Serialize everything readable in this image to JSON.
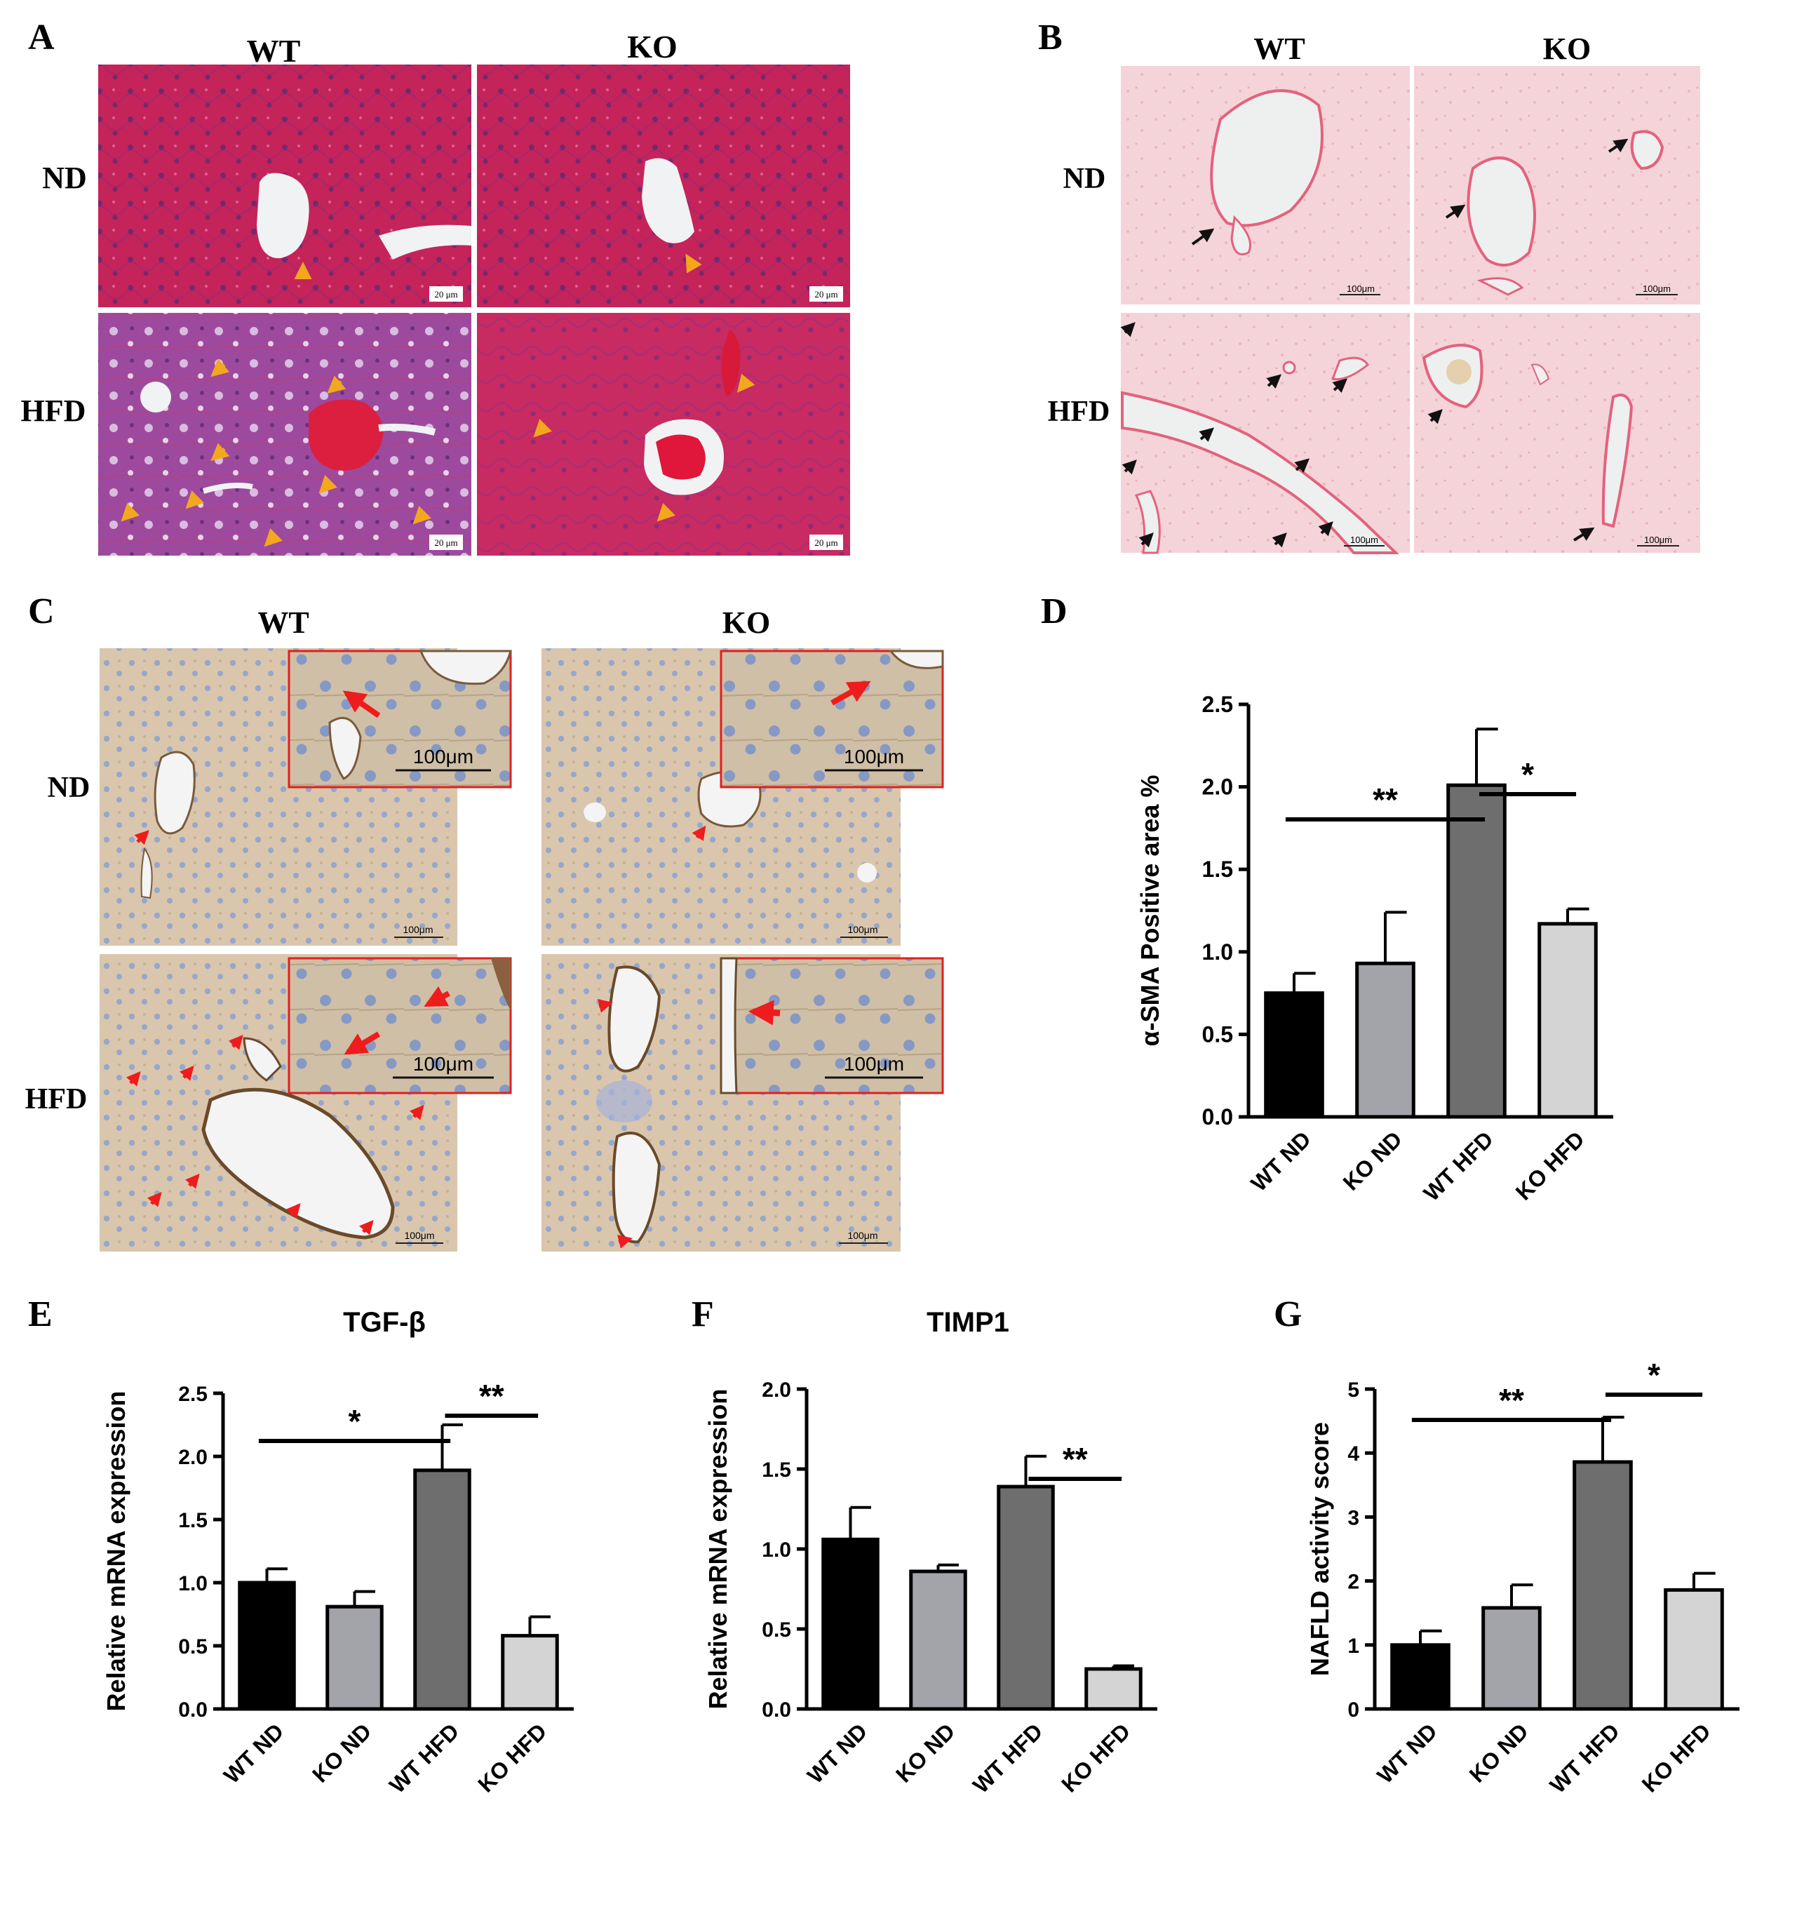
{
  "panels": {
    "A": {
      "letter": "A",
      "columns": [
        "WT",
        "KO"
      ],
      "rows": [
        "ND",
        "HFD"
      ],
      "scale_bar": "20 μm",
      "stain": "masson"
    },
    "B": {
      "letter": "B",
      "columns": [
        "WT",
        "KO"
      ],
      "rows": [
        "ND",
        "HFD"
      ],
      "scale_bar": "100μm",
      "stain": "sirius"
    },
    "C": {
      "letter": "C",
      "columns": [
        "WT",
        "KO"
      ],
      "rows": [
        "ND",
        "HFD"
      ],
      "scale_bar": "100μm",
      "inset_scale": "100μm",
      "stain": "ihc"
    },
    "D": {
      "letter": "D"
    },
    "E": {
      "letter": "E"
    },
    "F": {
      "letter": "F"
    },
    "G": {
      "letter": "G"
    }
  },
  "colors": {
    "WT ND": "#000000",
    "KO ND": "#a3a3aa",
    "WT HFD": "#6e6e6e",
    "KO HFD": "#d4d4d4",
    "arrow_A": "#f2a81d",
    "arrow_B": "#111111",
    "arrow_C": "#ee1c1c"
  },
  "chart_data": [
    {
      "panel": "D",
      "type": "bar",
      "title": "",
      "xlabel": "",
      "ylabel": "α-SMA Positive area %",
      "categories": [
        "WT ND",
        "KO ND",
        "WT HFD",
        "KO HFD"
      ],
      "values": [
        0.75,
        0.93,
        2.01,
        1.17
      ],
      "errors": [
        0.12,
        0.31,
        0.34,
        0.09
      ],
      "ylim": [
        0,
        2.5
      ],
      "yticks": [
        "0.0",
        "0.5",
        "1.0",
        "1.5",
        "2.0",
        "2.5"
      ],
      "significance": [
        {
          "from": 0,
          "to": 2,
          "label": "**"
        },
        {
          "from": 2,
          "to": 3,
          "label": "*"
        }
      ]
    },
    {
      "panel": "E",
      "type": "bar",
      "title": "TGF-β",
      "xlabel": "",
      "ylabel": "Relative mRNA expression",
      "categories": [
        "WT ND",
        "KO ND",
        "WT HFD",
        "KO HFD"
      ],
      "values": [
        1.0,
        0.81,
        1.89,
        0.58
      ],
      "errors": [
        0.11,
        0.12,
        0.36,
        0.15
      ],
      "ylim": [
        0,
        2.5
      ],
      "yticks": [
        "0.0",
        "0.5",
        "1.0",
        "1.5",
        "2.0",
        "2.5"
      ],
      "significance": [
        {
          "from": 0,
          "to": 2,
          "label": "*"
        },
        {
          "from": 2,
          "to": 3,
          "label": "**"
        }
      ]
    },
    {
      "panel": "F",
      "type": "bar",
      "title": "TIMP1",
      "xlabel": "",
      "ylabel": "Relative mRNA expression",
      "categories": [
        "WT ND",
        "KO ND",
        "WT HFD",
        "KO HFD"
      ],
      "values": [
        1.06,
        0.86,
        1.39,
        0.25
      ],
      "errors": [
        0.2,
        0.04,
        0.19,
        0.02
      ],
      "ylim": [
        0,
        2.0
      ],
      "yticks": [
        "0.0",
        "0.5",
        "1.0",
        "1.5",
        "2.0"
      ],
      "significance": [
        {
          "from": 2,
          "to": 3,
          "label": "**"
        }
      ]
    },
    {
      "panel": "G",
      "type": "bar",
      "title": "",
      "xlabel": "",
      "ylabel": "NAFLD activity score",
      "categories": [
        "WT ND",
        "KO ND",
        "WT HFD",
        "KO HFD"
      ],
      "values": [
        1.0,
        1.58,
        3.86,
        1.86
      ],
      "errors": [
        0.22,
        0.36,
        0.7,
        0.26
      ],
      "ylim": [
        0,
        5
      ],
      "yticks": [
        "0",
        "1",
        "2",
        "3",
        "4",
        "5"
      ],
      "significance": [
        {
          "from": 0,
          "to": 2,
          "label": "**"
        },
        {
          "from": 2,
          "to": 3,
          "label": "*"
        }
      ]
    }
  ]
}
